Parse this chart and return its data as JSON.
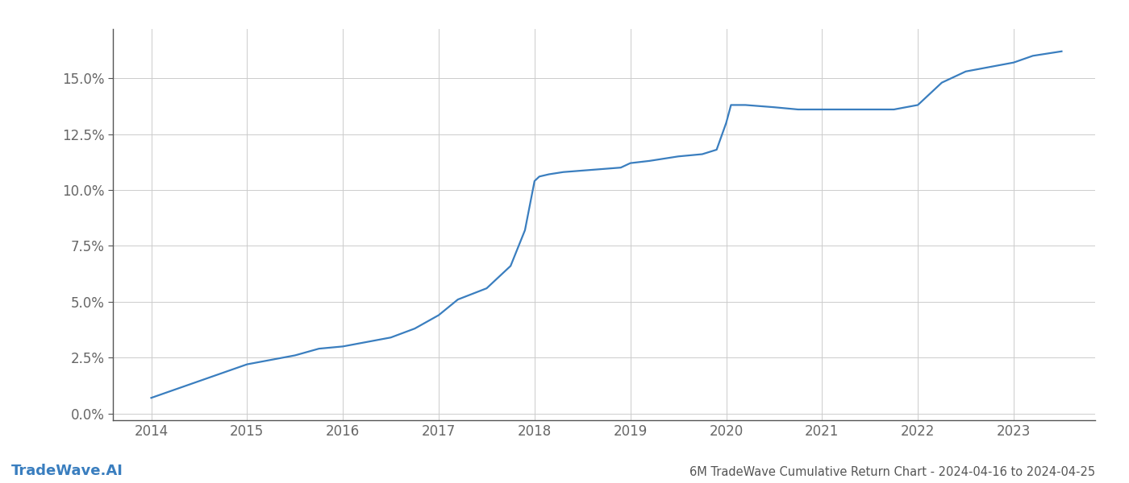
{
  "title": "6M TradeWave Cumulative Return Chart - 2024-04-16 to 2024-04-25",
  "watermark": "TradeWave.AI",
  "line_color": "#3a7ebf",
  "background_color": "#ffffff",
  "grid_color": "#cccccc",
  "x_years": [
    2014,
    2015,
    2016,
    2017,
    2018,
    2019,
    2020,
    2021,
    2022,
    2023
  ],
  "x_values": [
    2014.0,
    2014.2,
    2014.4,
    2014.6,
    2014.8,
    2015.0,
    2015.25,
    2015.5,
    2015.75,
    2016.0,
    2016.25,
    2016.5,
    2016.75,
    2017.0,
    2017.2,
    2017.5,
    2017.75,
    2017.9,
    2018.0,
    2018.05,
    2018.15,
    2018.3,
    2018.6,
    2018.9,
    2019.0,
    2019.2,
    2019.5,
    2019.75,
    2019.9,
    2020.0,
    2020.05,
    2020.2,
    2020.5,
    2020.75,
    2021.0,
    2021.25,
    2021.5,
    2021.75,
    2022.0,
    2022.1,
    2022.25,
    2022.5,
    2022.75,
    2023.0,
    2023.2,
    2023.5
  ],
  "y_values": [
    0.007,
    0.01,
    0.013,
    0.016,
    0.019,
    0.022,
    0.024,
    0.026,
    0.029,
    0.03,
    0.032,
    0.034,
    0.038,
    0.044,
    0.051,
    0.056,
    0.066,
    0.082,
    0.104,
    0.106,
    0.107,
    0.108,
    0.109,
    0.11,
    0.112,
    0.113,
    0.115,
    0.116,
    0.118,
    0.13,
    0.138,
    0.138,
    0.137,
    0.136,
    0.136,
    0.136,
    0.136,
    0.136,
    0.138,
    0.142,
    0.148,
    0.153,
    0.155,
    0.157,
    0.16,
    0.162
  ],
  "ylim": [
    -0.003,
    0.172
  ],
  "xlim": [
    2013.6,
    2023.85
  ],
  "yticks": [
    0.0,
    0.025,
    0.05,
    0.075,
    0.1,
    0.125,
    0.15
  ],
  "ytick_labels": [
    "0.0%",
    "2.5%",
    "5.0%",
    "7.5%",
    "10.0%",
    "12.5%",
    "15.0%"
  ],
  "title_fontsize": 10.5,
  "tick_fontsize": 12,
  "watermark_fontsize": 13,
  "line_width": 1.6
}
